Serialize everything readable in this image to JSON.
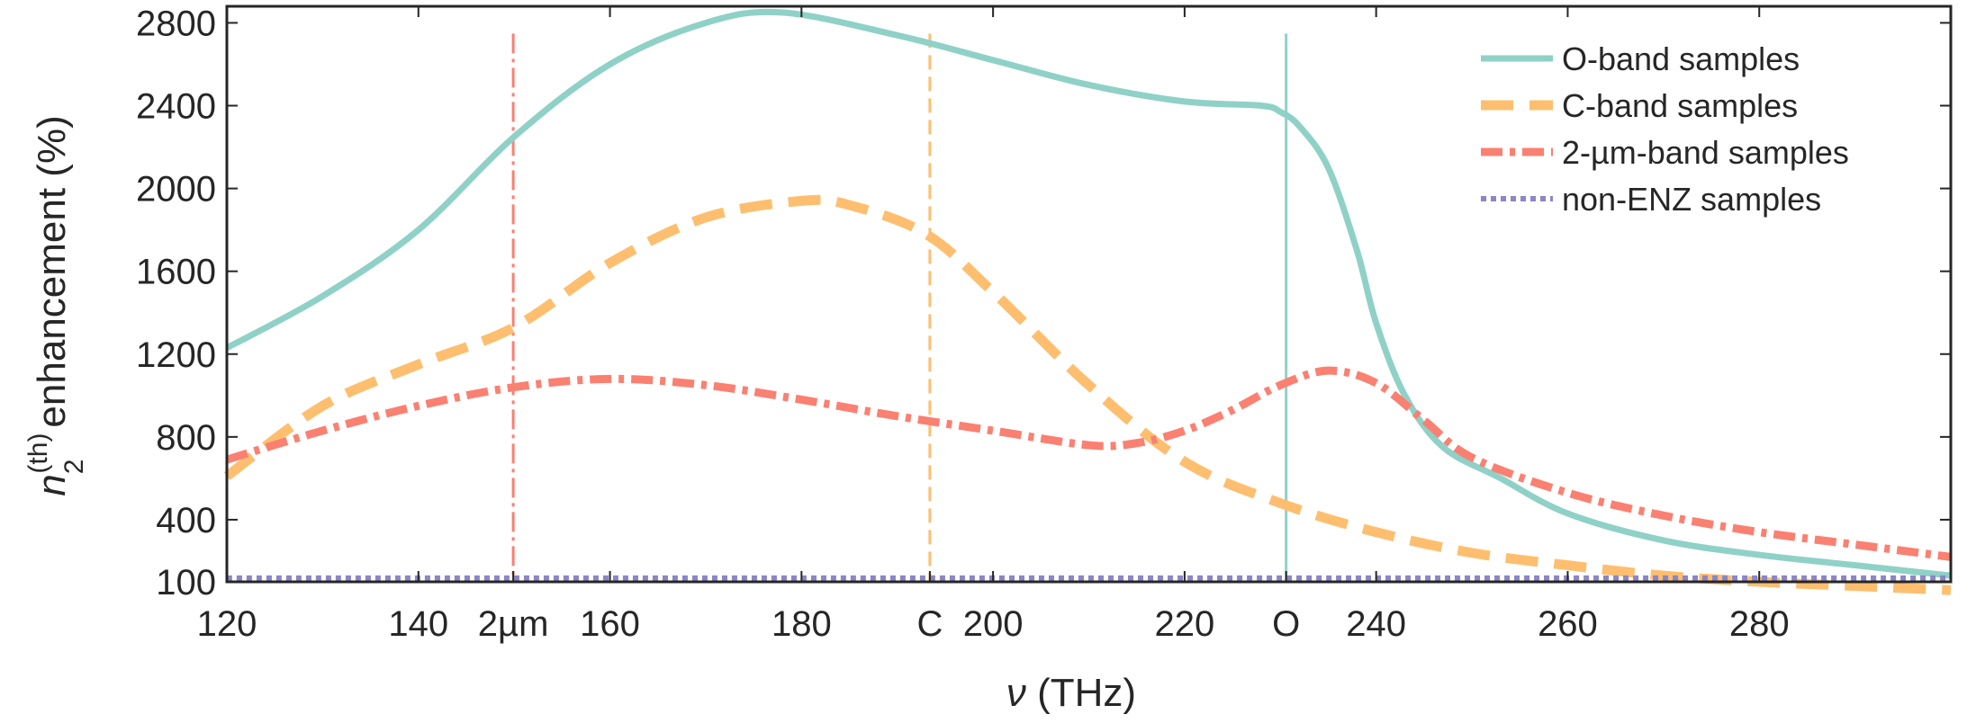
{
  "chart_data": {
    "type": "line",
    "title": "",
    "xlabel_symbol": "ν",
    "xlabel_unit": "(THz)",
    "ylabel_symbol": "n",
    "ylabel_sub": "2",
    "ylabel_sup": "(th)",
    "ylabel_text": "enhancement (%)",
    "xlim": [
      120,
      300
    ],
    "ylim": [
      100,
      2880
    ],
    "xticks": [
      120,
      140,
      160,
      180,
      200,
      220,
      240,
      260,
      280
    ],
    "yticks": [
      100,
      400,
      800,
      1200,
      1600,
      2000,
      2400,
      2800
    ],
    "band_markers": [
      {
        "label": "2µm",
        "x": 149.9,
        "color": "#fa8072",
        "style": "dashdot"
      },
      {
        "label": "C",
        "x": 193.4,
        "color": "#fdbf6f",
        "style": "dash"
      },
      {
        "label": "O",
        "x": 230.6,
        "color": "#8fd1c7",
        "style": "solid"
      }
    ],
    "legend_position": "top-right",
    "series": [
      {
        "name": "O-band samples",
        "color": "#8fd1c7",
        "style": "solid",
        "x": [
          120,
          130,
          140,
          150,
          160,
          170,
          178,
          190,
          200,
          210,
          220,
          228,
          230,
          232,
          235,
          238,
          240,
          243,
          247,
          253,
          260,
          270,
          280,
          290,
          300
        ],
        "y": [
          1230,
          1480,
          1800,
          2250,
          2600,
          2800,
          2850,
          2740,
          2620,
          2500,
          2420,
          2400,
          2370,
          2300,
          2100,
          1700,
          1350,
          1000,
          750,
          600,
          430,
          300,
          230,
          180,
          130
        ]
      },
      {
        "name": "C-band samples",
        "color": "#fdbf6f",
        "style": "dash",
        "x": [
          120,
          130,
          140,
          150,
          160,
          170,
          180,
          185,
          193,
          200,
          210,
          220,
          230,
          240,
          250,
          260,
          270,
          280,
          290,
          300
        ],
        "y": [
          610,
          950,
          1150,
          1330,
          1640,
          1860,
          1940,
          1920,
          1780,
          1500,
          1050,
          680,
          480,
          340,
          240,
          180,
          130,
          100,
          80,
          60
        ]
      },
      {
        "name": "2-µm-band samples",
        "color": "#fa8072",
        "style": "dashdot",
        "x": [
          120,
          130,
          140,
          150,
          160,
          170,
          180,
          190,
          200,
          210,
          215,
          220,
          225,
          230,
          235,
          240,
          245,
          250,
          260,
          270,
          280,
          290,
          300
        ],
        "y": [
          690,
          830,
          950,
          1040,
          1080,
          1050,
          980,
          900,
          830,
          760,
          770,
          830,
          930,
          1050,
          1120,
          1060,
          880,
          700,
          530,
          420,
          340,
          280,
          220
        ]
      },
      {
        "name": "non-ENZ samples",
        "color": "#8c85c6",
        "style": "dot",
        "x": [
          120,
          300
        ],
        "y": [
          118,
          118
        ]
      }
    ]
  }
}
